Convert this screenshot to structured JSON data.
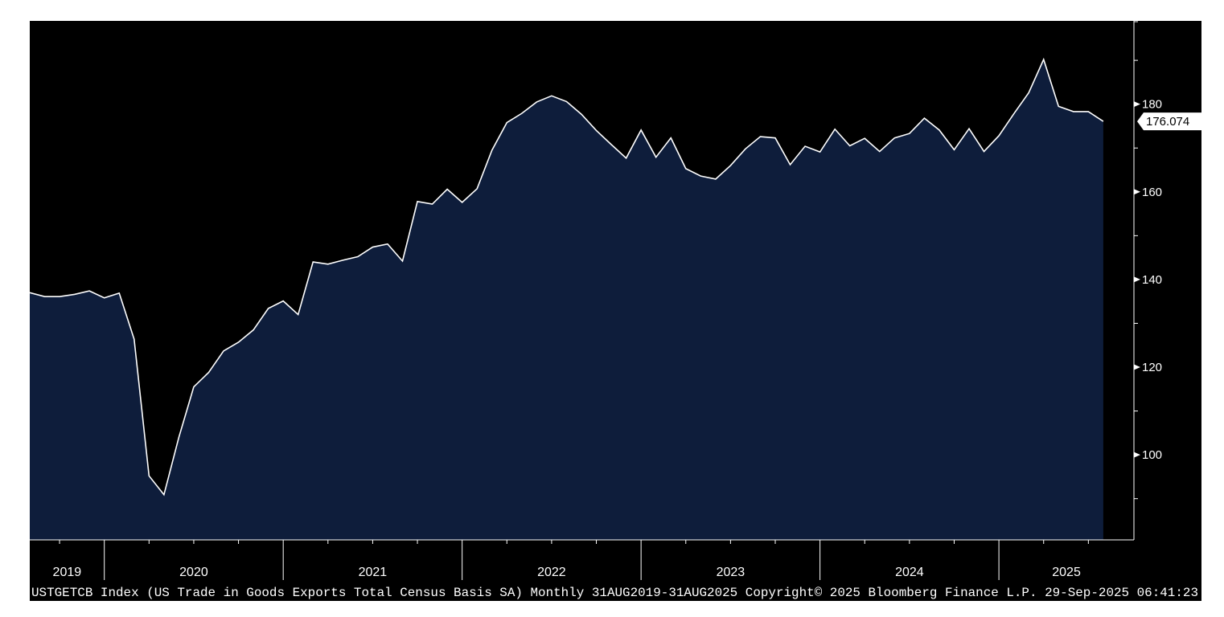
{
  "chart_data": {
    "type": "area",
    "x": [
      "2019-08",
      "2019-09",
      "2019-10",
      "2019-11",
      "2019-12",
      "2020-01",
      "2020-02",
      "2020-03",
      "2020-04",
      "2020-05",
      "2020-06",
      "2020-07",
      "2020-08",
      "2020-09",
      "2020-10",
      "2020-11",
      "2020-12",
      "2021-01",
      "2021-02",
      "2021-03",
      "2021-04",
      "2021-05",
      "2021-06",
      "2021-07",
      "2021-08",
      "2021-09",
      "2021-10",
      "2021-11",
      "2021-12",
      "2022-01",
      "2022-02",
      "2022-03",
      "2022-04",
      "2022-05",
      "2022-06",
      "2022-07",
      "2022-08",
      "2022-09",
      "2022-10",
      "2022-11",
      "2022-12",
      "2023-01",
      "2023-02",
      "2023-03",
      "2023-04",
      "2023-05",
      "2023-06",
      "2023-07",
      "2023-08",
      "2023-09",
      "2023-10",
      "2023-11",
      "2023-12",
      "2024-01",
      "2024-02",
      "2024-03",
      "2024-04",
      "2024-05",
      "2024-06",
      "2024-07",
      "2024-08",
      "2024-09",
      "2024-10",
      "2024-11",
      "2024-12",
      "2025-01",
      "2025-02",
      "2025-03",
      "2025-04",
      "2025-05",
      "2025-06",
      "2025-07",
      "2025-08"
    ],
    "values": [
      137.0,
      136.1,
      136.1,
      136.6,
      137.4,
      135.8,
      136.9,
      126.4,
      95.2,
      90.9,
      104.0,
      115.5,
      118.8,
      123.7,
      125.7,
      128.5,
      133.4,
      135.1,
      132.0,
      144.0,
      143.5,
      144.4,
      145.2,
      147.4,
      148.1,
      144.2,
      157.8,
      157.2,
      160.6,
      157.6,
      160.7,
      169.5,
      175.8,
      177.9,
      180.5,
      181.9,
      180.6,
      177.7,
      174.0,
      170.8,
      167.7,
      174.1,
      167.9,
      172.3,
      165.3,
      163.6,
      162.9,
      166.0,
      169.8,
      172.6,
      172.3,
      166.2,
      170.4,
      169.1,
      174.3,
      170.5,
      172.2,
      169.2,
      172.3,
      173.3,
      176.8,
      174.1,
      169.6,
      174.4,
      169.2,
      172.8,
      177.8,
      182.6,
      190.2,
      179.5,
      178.3,
      178.3,
      176.074
    ],
    "ylim": [
      80.6,
      199
    ],
    "y_ticks": [
      100,
      120,
      140,
      160,
      180
    ],
    "x_tick_labels": [
      "2019",
      "2020",
      "2021",
      "2022",
      "2023",
      "2024",
      "2025"
    ],
    "last_value_label": "176.074",
    "footer": "USTGETCB Index (US Trade in Goods Exports Total Census Basis SA)  Monthly 31AUG2019-31AUG2025 Copyright© 2025 Bloomberg Finance L.P. 29-Sep-2025 06:41:23",
    "colors": {
      "background": "#000000",
      "area_fill": "#0e1d3b",
      "line": "#ffffff",
      "axis": "#ffffff",
      "label_box": "#ffffff"
    },
    "grid": false
  }
}
